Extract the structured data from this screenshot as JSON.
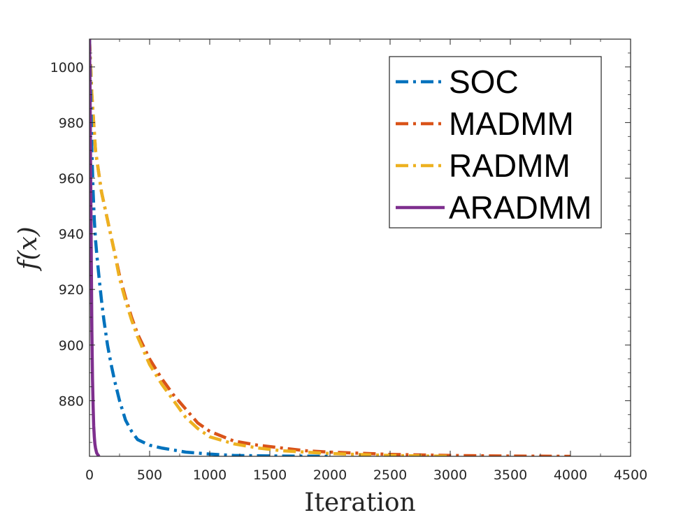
{
  "chart_data": {
    "type": "line",
    "title": "",
    "xlabel": "Iteration",
    "ylabel": "f(x)",
    "xlim": [
      0,
      4500
    ],
    "ylim": [
      860,
      1010
    ],
    "xticks": [
      0,
      500,
      1000,
      1500,
      2000,
      2500,
      3000,
      3500,
      4000,
      4500
    ],
    "yticks": [
      880,
      900,
      920,
      940,
      960,
      980,
      1000
    ],
    "xtick_labels": [
      "0",
      "500",
      "1000",
      "1500",
      "2000",
      "2500",
      "3000",
      "3500",
      "4000",
      "4500"
    ],
    "ytick_labels": [
      "880",
      "900",
      "920",
      "940",
      "960",
      "980",
      "1000"
    ],
    "grid": false,
    "legend_position": "top-right",
    "series": [
      {
        "name": "SOC",
        "color": "#0072BD",
        "style": "dashdot",
        "x": [
          0,
          10,
          20,
          30,
          40,
          50,
          60,
          80,
          100,
          120,
          150,
          180,
          210,
          250,
          300,
          350,
          400,
          500,
          600,
          800,
          1000,
          1200,
          1400,
          1600,
          1800,
          2000
        ],
        "y": [
          1010,
          990,
          970,
          955,
          945,
          938,
          933,
          924,
          916,
          909,
          900,
          893,
          887,
          880,
          873,
          869,
          866,
          864,
          863,
          861.5,
          860.8,
          860.3,
          860.2,
          860.1,
          860.05,
          860
        ]
      },
      {
        "name": "MADMM",
        "color": "#D95319",
        "style": "dashdot",
        "x": [
          0,
          20,
          50,
          100,
          150,
          200,
          250,
          300,
          350,
          400,
          500,
          600,
          700,
          800,
          900,
          1000,
          1200,
          1400,
          1600,
          1800,
          2000,
          2500,
          3000,
          3500,
          4000
        ],
        "y": [
          1010,
          990,
          970,
          955,
          945,
          935,
          925,
          917,
          910,
          904,
          895,
          888,
          882,
          877,
          872,
          869,
          865.5,
          864,
          863,
          862,
          861.5,
          860.7,
          860.3,
          860.1,
          860
        ]
      },
      {
        "name": "RADMM",
        "color": "#EDB120",
        "style": "dashdot",
        "x": [
          0,
          20,
          50,
          100,
          150,
          200,
          250,
          300,
          350,
          400,
          500,
          600,
          700,
          800,
          900,
          1000,
          1200,
          1400,
          1600,
          2000,
          2500,
          3000
        ],
        "y": [
          1010,
          990,
          970,
          955,
          945,
          935,
          924,
          916,
          909,
          903,
          893,
          886,
          880,
          874,
          870,
          867,
          864.5,
          863,
          862,
          861,
          860.3,
          860
        ]
      },
      {
        "name": "ARADMM",
        "color": "#7E2F8E",
        "style": "solid",
        "x": [
          0,
          5,
          10,
          15,
          20,
          25,
          30,
          35,
          40,
          45,
          50,
          55,
          60,
          70,
          80
        ],
        "y": [
          1010,
          990,
          960,
          930,
          905,
          888,
          878,
          871,
          867,
          864.5,
          863,
          862,
          861.2,
          860.5,
          860
        ]
      }
    ]
  }
}
